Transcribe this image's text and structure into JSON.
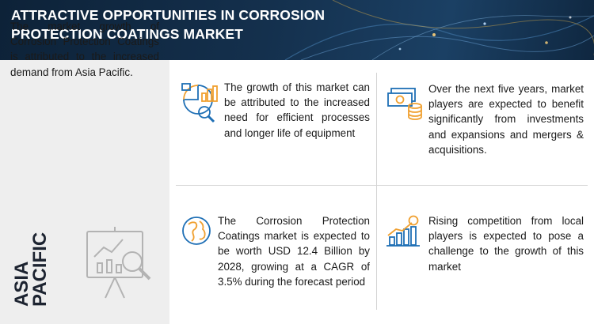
{
  "header": {
    "title": "ATTRACTIVE OPPORTUNITIES IN  CORROSION PROTECTION COATINGS MARKET"
  },
  "left_panel": {
    "text": "The market growth of Corrosion Protection Coatings is attributed to the increased demand from Asia Pacific.",
    "region_line1": "ASIA",
    "region_line2": "PACIFIC"
  },
  "cards": [
    {
      "icon": "analysis-chart-icon",
      "text": "The growth of this market can be attributed to the increased need for efficient processes and longer life of equipment"
    },
    {
      "icon": "money-stack-icon",
      "text": "Over the next five years, market players are expected to benefit significantly from investments and expansions and mergers & acquisitions."
    },
    {
      "icon": "globe-icon",
      "text": "The Corrosion Protection Coatings market is expected to be worth USD 12.4 Billion by 2028, growing at a CAGR of 3.5% during the forecast period"
    },
    {
      "icon": "growth-chart-icon",
      "text": "Rising competition from local players is expected to pose a challenge to the growth of this market"
    }
  ],
  "colors": {
    "header_bg": "#14304d",
    "accent_blue": "#1e6fb5",
    "accent_orange": "#f0a030",
    "left_panel_bg": "#eeeeee"
  }
}
